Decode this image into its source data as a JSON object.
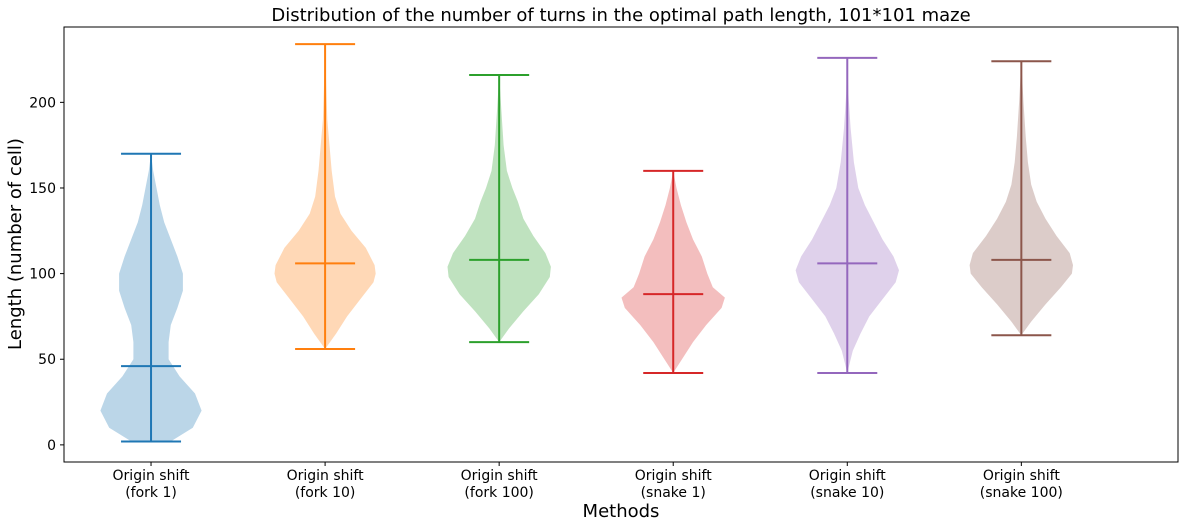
{
  "chart_data": {
    "type": "violin",
    "title": "Distribution of the number of turns in the optimal path length, 101*101 maze",
    "xlabel": "Methods",
    "ylabel": "Length (number of cell)",
    "ylim": [
      -10,
      244
    ],
    "yticks": [
      0,
      50,
      100,
      150,
      200
    ],
    "grid": false,
    "series": [
      {
        "category": [
          "Origin shift",
          "(fork 1)"
        ],
        "color": "#1f77b4",
        "min": 2,
        "max": 170,
        "median": 46,
        "density": [
          [
            2,
            0.18
          ],
          [
            10,
            0.38
          ],
          [
            20,
            0.46
          ],
          [
            30,
            0.4
          ],
          [
            40,
            0.26
          ],
          [
            50,
            0.16
          ],
          [
            60,
            0.16
          ],
          [
            70,
            0.18
          ],
          [
            80,
            0.24
          ],
          [
            90,
            0.29
          ],
          [
            100,
            0.29
          ],
          [
            110,
            0.24
          ],
          [
            120,
            0.18
          ],
          [
            130,
            0.12
          ],
          [
            140,
            0.08
          ],
          [
            150,
            0.05
          ],
          [
            160,
            0.02
          ],
          [
            170,
            0.0
          ]
        ]
      },
      {
        "category": [
          "Origin shift",
          "(fork 10)"
        ],
        "color": "#ff7f0e",
        "min": 56,
        "max": 234,
        "median": 106,
        "density": [
          [
            56,
            0.0
          ],
          [
            65,
            0.1
          ],
          [
            75,
            0.2
          ],
          [
            85,
            0.32
          ],
          [
            95,
            0.44
          ],
          [
            100,
            0.46
          ],
          [
            105,
            0.45
          ],
          [
            115,
            0.37
          ],
          [
            125,
            0.24
          ],
          [
            135,
            0.14
          ],
          [
            145,
            0.09
          ],
          [
            160,
            0.06
          ],
          [
            175,
            0.04
          ],
          [
            190,
            0.02
          ],
          [
            210,
            0.01
          ],
          [
            234,
            0.0
          ]
        ]
      },
      {
        "category": [
          "Origin shift",
          "(fork 100)"
        ],
        "color": "#2ca02c",
        "min": 60,
        "max": 216,
        "median": 108,
        "density": [
          [
            60,
            0.0
          ],
          [
            68,
            0.09
          ],
          [
            78,
            0.22
          ],
          [
            88,
            0.36
          ],
          [
            98,
            0.46
          ],
          [
            104,
            0.47
          ],
          [
            112,
            0.42
          ],
          [
            122,
            0.31
          ],
          [
            132,
            0.22
          ],
          [
            142,
            0.17
          ],
          [
            150,
            0.12
          ],
          [
            160,
            0.07
          ],
          [
            175,
            0.04
          ],
          [
            195,
            0.02
          ],
          [
            216,
            0.0
          ]
        ]
      },
      {
        "category": [
          "Origin shift",
          "(snake 1)"
        ],
        "color": "#d62728",
        "min": 42,
        "max": 160,
        "median": 88,
        "density": [
          [
            42,
            0.0
          ],
          [
            50,
            0.08
          ],
          [
            60,
            0.18
          ],
          [
            70,
            0.3
          ],
          [
            80,
            0.44
          ],
          [
            86,
            0.47
          ],
          [
            92,
            0.36
          ],
          [
            100,
            0.31
          ],
          [
            110,
            0.26
          ],
          [
            120,
            0.18
          ],
          [
            130,
            0.12
          ],
          [
            140,
            0.07
          ],
          [
            150,
            0.03
          ],
          [
            160,
            0.0
          ]
        ]
      },
      {
        "category": [
          "Origin shift",
          "(snake 10)"
        ],
        "color": "#9467bd",
        "min": 42,
        "max": 226,
        "median": 106,
        "density": [
          [
            42,
            0.0
          ],
          [
            55,
            0.05
          ],
          [
            65,
            0.12
          ],
          [
            75,
            0.2
          ],
          [
            85,
            0.32
          ],
          [
            95,
            0.44
          ],
          [
            102,
            0.47
          ],
          [
            110,
            0.42
          ],
          [
            120,
            0.32
          ],
          [
            130,
            0.24
          ],
          [
            140,
            0.16
          ],
          [
            150,
            0.1
          ],
          [
            165,
            0.06
          ],
          [
            185,
            0.03
          ],
          [
            205,
            0.01
          ],
          [
            226,
            0.0
          ]
        ]
      },
      {
        "category": [
          "Origin shift",
          "(snake 100)"
        ],
        "color": "#8c564b",
        "min": 64,
        "max": 224,
        "median": 108,
        "density": [
          [
            64,
            0.0
          ],
          [
            72,
            0.09
          ],
          [
            82,
            0.22
          ],
          [
            92,
            0.36
          ],
          [
            100,
            0.46
          ],
          [
            105,
            0.47
          ],
          [
            112,
            0.44
          ],
          [
            122,
            0.32
          ],
          [
            132,
            0.22
          ],
          [
            142,
            0.14
          ],
          [
            152,
            0.09
          ],
          [
            165,
            0.06
          ],
          [
            180,
            0.04
          ],
          [
            200,
            0.02
          ],
          [
            224,
            0.0
          ]
        ]
      }
    ]
  }
}
